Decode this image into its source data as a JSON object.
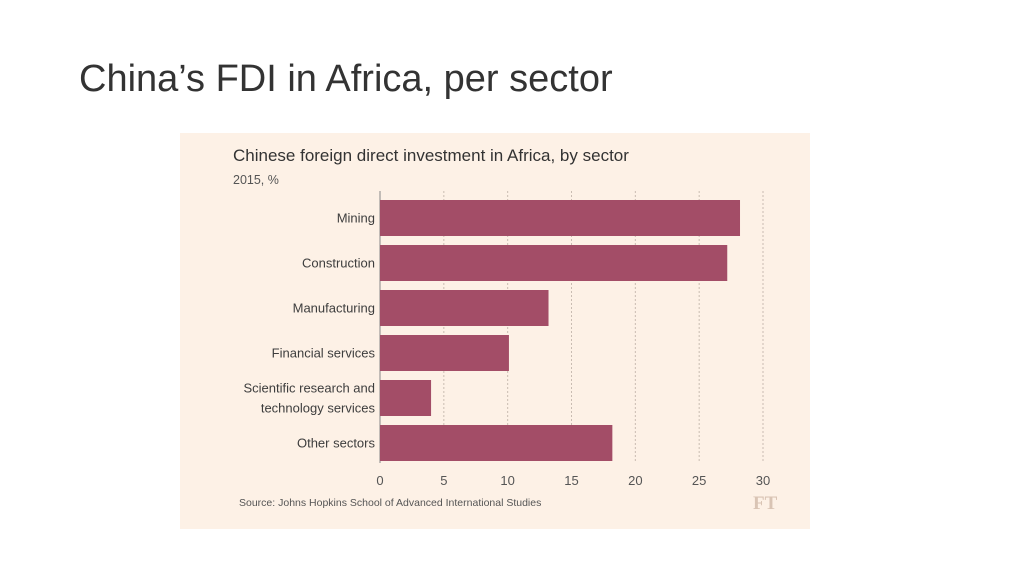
{
  "slide": {
    "title": "China’s FDI in Africa, per sector"
  },
  "chart_data": {
    "type": "bar",
    "orientation": "horizontal",
    "title": "Chinese foreign direct investment in Africa, by sector",
    "subtitle": "2015, %",
    "categories": [
      [
        "Mining"
      ],
      [
        "Construction"
      ],
      [
        "Manufacturing"
      ],
      [
        "Financial services"
      ],
      [
        "Scientific research and",
        "technology services"
      ],
      [
        "Other sectors"
      ]
    ],
    "values": [
      28.2,
      27.2,
      13.2,
      10.1,
      4.0,
      18.2
    ],
    "xlim": [
      0,
      30
    ],
    "xticks": [
      "0",
      "5",
      "10",
      "15",
      "20",
      "25",
      "30"
    ],
    "grid": true,
    "source": "Source: Johns Hopkins School of Advanced International Studies",
    "logo": "FT",
    "colors": {
      "bar": "#a34d67",
      "background": "#fdf1e6",
      "grid": "#c9bcb2"
    }
  }
}
